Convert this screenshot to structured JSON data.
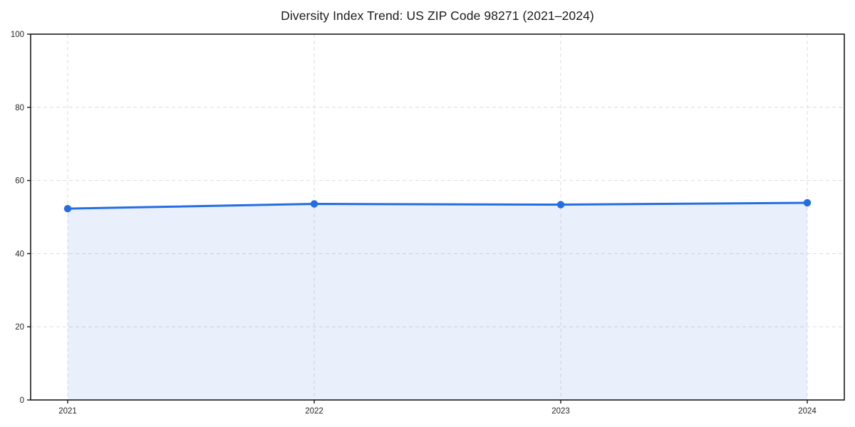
{
  "title": "Diversity Index Trend: US ZIP Code 98271 (2021–2024)",
  "chart_data": {
    "type": "area",
    "title": "Diversity Index Trend: US ZIP Code 98271 (2021–2024)",
    "categories": [
      "2021",
      "2022",
      "2023",
      "2024"
    ],
    "values": [
      52.3,
      53.6,
      53.4,
      53.9
    ],
    "series_name": "Diversity Index",
    "xlabel": "",
    "ylabel": "",
    "ylim": [
      0,
      100
    ],
    "yticks": [
      0,
      20,
      40,
      60,
      80,
      100
    ],
    "grid": "dashed-both-axes",
    "legend": "none",
    "marker": "circle",
    "line_color": "#236EE1",
    "fill_color": "#236EE1",
    "fill_opacity": 0.1,
    "grid_color": "#dddddd",
    "border_color": "#1a1a1a",
    "background_color": "#ffffff"
  }
}
